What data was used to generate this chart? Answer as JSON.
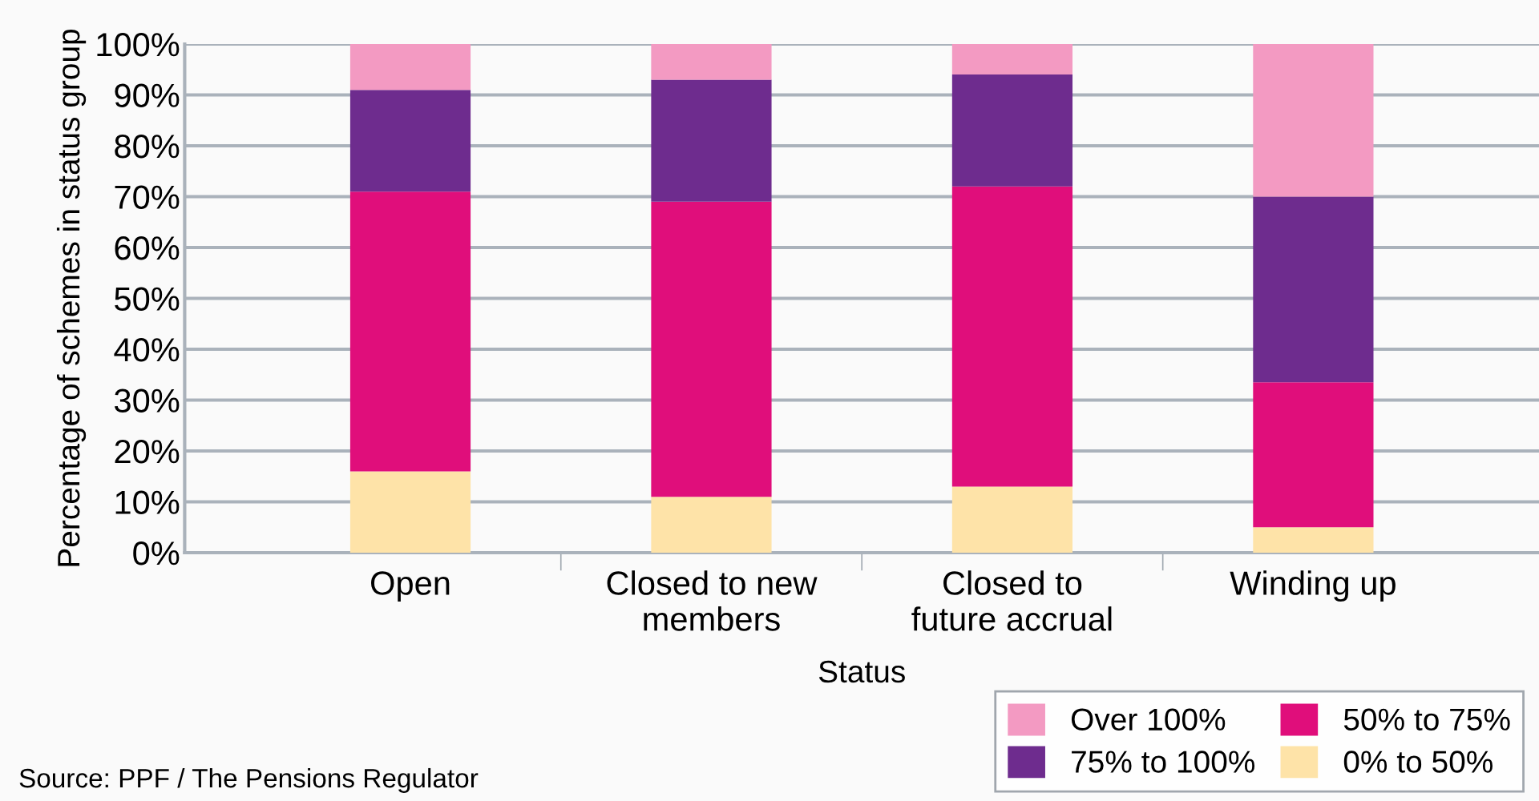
{
  "chart_data": {
    "type": "bar",
    "stacked": true,
    "xlabel": "Status",
    "ylabel": "Percentage of schemes in status group",
    "categories": [
      "Open",
      "Closed to new\nmembers",
      "Closed to\nfuture accrual",
      "Winding up"
    ],
    "series": [
      {
        "name": "0% to 50%",
        "color": "#fee3a8",
        "values": [
          16,
          11,
          13,
          5
        ]
      },
      {
        "name": "50% to 75%",
        "color": "#e00e7b",
        "values": [
          55,
          58,
          59,
          28.5
        ]
      },
      {
        "name": "75% to 100%",
        "color": "#6e2c8e",
        "values": [
          20,
          24,
          22,
          36.5
        ]
      },
      {
        "name": "Over 100%",
        "color": "#f39ac2",
        "values": [
          9,
          7,
          6,
          30
        ]
      }
    ],
    "ylim": [
      0,
      100
    ],
    "yticks": [
      {
        "value": 0,
        "label": "0%"
      },
      {
        "value": 10,
        "label": "10%"
      },
      {
        "value": 20,
        "label": "20%"
      },
      {
        "value": 30,
        "label": "30%"
      },
      {
        "value": 40,
        "label": "40%"
      },
      {
        "value": 50,
        "label": "50%"
      },
      {
        "value": 60,
        "label": "60%"
      },
      {
        "value": 70,
        "label": "70%"
      },
      {
        "value": 80,
        "label": "80%"
      },
      {
        "value": 90,
        "label": "90%"
      },
      {
        "value": 100,
        "label": "100%"
      }
    ],
    "grid": "y",
    "legend": "bottom right",
    "annotations": [
      "Source: PPF / The Pensions Regulator"
    ]
  }
}
